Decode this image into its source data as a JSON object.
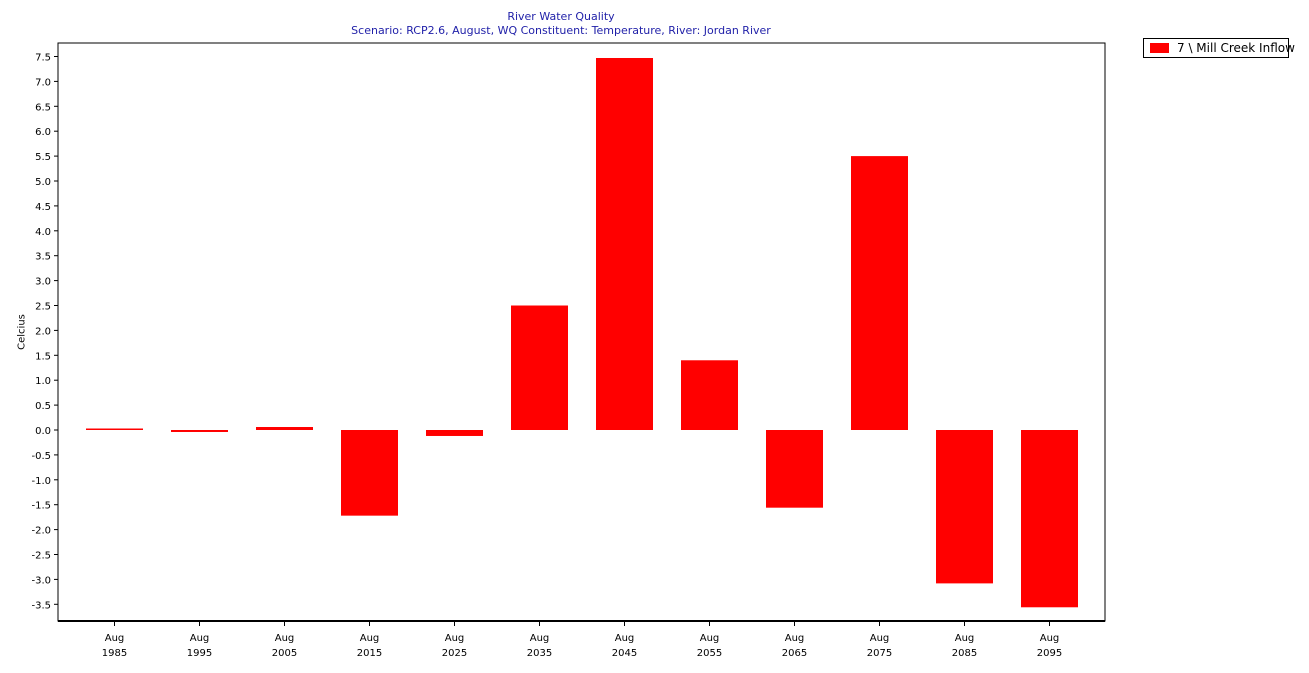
{
  "chart_data": {
    "type": "bar",
    "title": "River Water Quality",
    "subtitle": "Scenario: RCP2.6,  August,  WQ Constituent: Temperature,  River: Jordan River",
    "ylabel": "Celcius",
    "xlabel": "",
    "categories": [
      [
        "Aug",
        "1985"
      ],
      [
        "Aug",
        "1995"
      ],
      [
        "Aug",
        "2005"
      ],
      [
        "Aug",
        "2015"
      ],
      [
        "Aug",
        "2025"
      ],
      [
        "Aug",
        "2035"
      ],
      [
        "Aug",
        "2045"
      ],
      [
        "Aug",
        "2055"
      ],
      [
        "Aug",
        "2065"
      ],
      [
        "Aug",
        "2075"
      ],
      [
        "Aug",
        "2085"
      ],
      [
        "Aug",
        "2095"
      ]
    ],
    "series": [
      {
        "name": "7 \\ Mill Creek Inflow",
        "color": "#ff0000",
        "values": [
          0.02,
          -0.04,
          0.06,
          -1.72,
          -0.12,
          2.5,
          7.47,
          1.4,
          -1.56,
          5.5,
          -3.08,
          -3.56
        ]
      }
    ],
    "ylim": [
      -3.8,
      7.75
    ],
    "yticks": [
      "7.5",
      "7.0",
      "6.5",
      "6.0",
      "5.5",
      "5.0",
      "4.5",
      "4.0",
      "3.5",
      "3.0",
      "2.5",
      "2.0",
      "1.5",
      "1.0",
      "0.5",
      "0.0",
      "-0.5",
      "-1.0",
      "-1.5",
      "-2.0",
      "-2.5",
      "-3.0",
      "-3.5"
    ],
    "grid": false,
    "legend": "top-right"
  }
}
